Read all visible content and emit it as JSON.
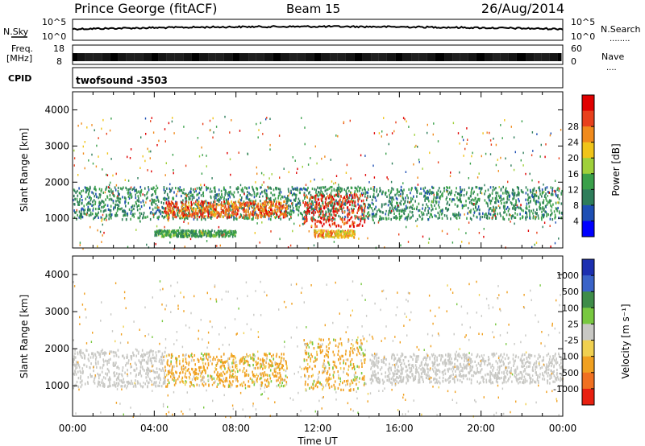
{
  "header": {
    "station": "Prince George (fitACF)",
    "beam": "Beam 15",
    "date": "26/Aug/2014"
  },
  "noise_panel": {
    "left_label": "N.Sky",
    "left_ticks": [
      "10^5",
      "10^0"
    ],
    "right_ticks": [
      "10^5",
      "10^0"
    ],
    "right_label": "N.Search",
    "right_dots": "........",
    "colors": {
      "sky": "#000000",
      "search": "#000000"
    }
  },
  "freq_panel": {
    "left_label_line1": "Freq.",
    "left_label_line2": "[MHz]",
    "left_ticks": [
      "18",
      "8"
    ],
    "right_ticks": [
      "60",
      "0"
    ],
    "right_label": "Nave",
    "right_dots": "...."
  },
  "cpid_panel": {
    "label": "CPID",
    "program": "twofsound  -3503"
  },
  "time_axis": {
    "label": "Time UT",
    "ticks": [
      "00:00",
      "04:00",
      "08:00",
      "12:00",
      "16:00",
      "20:00",
      "00:00"
    ]
  },
  "chart_data": [
    {
      "type": "heatmap",
      "name": "power",
      "ylabel": "Slant Range [km]",
      "y_ticks": [
        "1000",
        "2000",
        "3000",
        "4000"
      ],
      "ylim": [
        180,
        4500
      ],
      "xlim_hours": [
        0,
        24
      ],
      "colorbar": {
        "label": "Power [dB]",
        "ticks": [
          "4",
          "8",
          "12",
          "16",
          "20",
          "24",
          "28"
        ],
        "range": [
          0,
          32
        ],
        "colors": [
          "#0000ff",
          "#1e4fb4",
          "#2e7d5a",
          "#3aa04a",
          "#9fd03a",
          "#f0c419",
          "#f08a1c",
          "#e8401c",
          "#e00000"
        ]
      },
      "features": [
        {
          "desc": "main scatter band",
          "hours": [
            0,
            24
          ],
          "range_km": [
            1000,
            1900
          ],
          "power_db": [
            6,
            14
          ]
        },
        {
          "desc": "strong echoes",
          "hours": [
            4.5,
            10.5
          ],
          "range_km": [
            1050,
            1500
          ],
          "power_db": [
            20,
            30
          ]
        },
        {
          "desc": "strong echoes",
          "hours": [
            11.3,
            14.3
          ],
          "range_km": [
            800,
            1700
          ],
          "power_db": [
            24,
            32
          ]
        },
        {
          "desc": "near-range band",
          "hours": [
            4,
            8
          ],
          "range_km": [
            520,
            700
          ],
          "power_db": [
            8,
            16
          ]
        },
        {
          "desc": "near-range band",
          "hours": [
            11.8,
            13.8
          ],
          "range_km": [
            500,
            700
          ],
          "power_db": [
            16,
            26
          ]
        }
      ]
    },
    {
      "type": "heatmap",
      "name": "velocity",
      "ylabel": "Slant Range [km]",
      "y_ticks": [
        "1000",
        "2000",
        "3000",
        "4000"
      ],
      "ylim": [
        180,
        4500
      ],
      "xlim_hours": [
        0,
        24
      ],
      "colorbar": {
        "label": "Velocity [m s⁻¹]",
        "ticks": [
          "1000",
          "500",
          "100",
          "25",
          "-25",
          "-100",
          "-500",
          "-1000"
        ],
        "colors": [
          "#1c2fb0",
          "#3a63c8",
          "#3e8c48",
          "#78c840",
          "#c8c8c4",
          "#f0d050",
          "#f0a020",
          "#f07020",
          "#e82010"
        ]
      },
      "features": [
        {
          "desc": "ground scatter (grey)",
          "hours": [
            0,
            4.5
          ],
          "range_km": [
            1000,
            2000
          ],
          "velocity": [
            -25,
            25
          ]
        },
        {
          "desc": "ground scatter (grey)",
          "hours": [
            14.5,
            24
          ],
          "range_km": [
            1100,
            1900
          ],
          "velocity": [
            -25,
            25
          ]
        },
        {
          "desc": "ionospheric echoes",
          "hours": [
            4.5,
            10.5
          ],
          "range_km": [
            1000,
            1900
          ],
          "velocity": [
            -500,
            100
          ]
        },
        {
          "desc": "ionospheric echoes",
          "hours": [
            11.3,
            14.3
          ],
          "range_km": [
            900,
            2300
          ],
          "velocity": [
            -500,
            100
          ]
        }
      ]
    }
  ]
}
